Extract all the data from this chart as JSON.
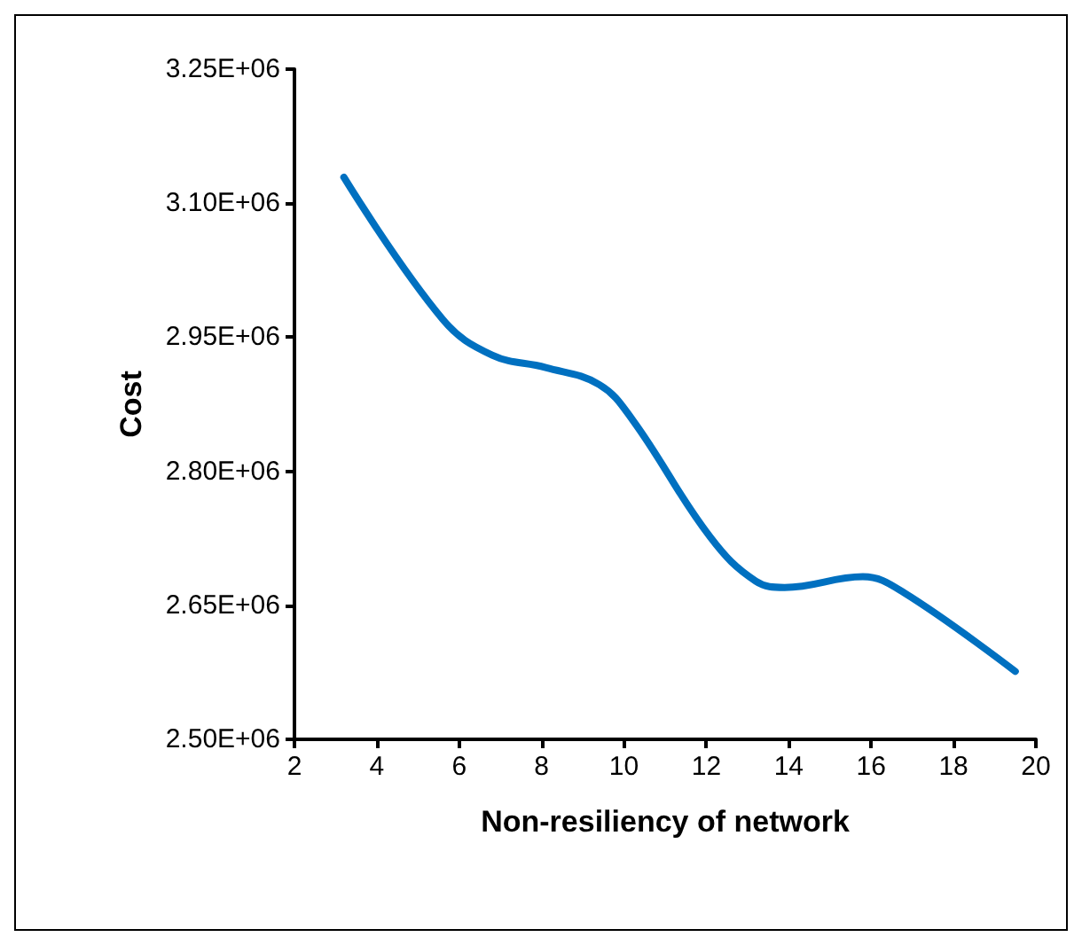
{
  "chart_data": {
    "type": "line",
    "xlabel": "Non-resiliency of network",
    "ylabel": "Cost",
    "x": [
      3.2,
      5.6,
      6.8,
      8.1,
      9.4,
      10.2,
      12.1,
      13.2,
      13.9,
      15.8,
      16.8,
      19.5
    ],
    "series": [
      {
        "color": "#0070c0",
        "values": [
          3129000,
          2970000,
          2930000,
          2916000,
          2897000,
          2858000,
          2726000,
          2677000,
          2670000,
          2682000,
          2664000,
          2576000
        ]
      }
    ],
    "xlim": [
      2,
      20
    ],
    "xticks": [
      2,
      4,
      6,
      8,
      10,
      12,
      14,
      16,
      18,
      20
    ],
    "ylim": [
      2500000,
      3250000
    ],
    "yticks": [
      {
        "value": 2500000,
        "label": "2.50E+06"
      },
      {
        "value": 2650000,
        "label": "2.65E+06"
      },
      {
        "value": 2800000,
        "label": "2.80E+06"
      },
      {
        "value": 2950000,
        "label": "2.95E+06"
      },
      {
        "value": 3100000,
        "label": "3.10E+06"
      },
      {
        "value": 3250000,
        "label": "3.25E+06"
      }
    ],
    "grid": false,
    "marker": "none",
    "line_style": "solid"
  }
}
